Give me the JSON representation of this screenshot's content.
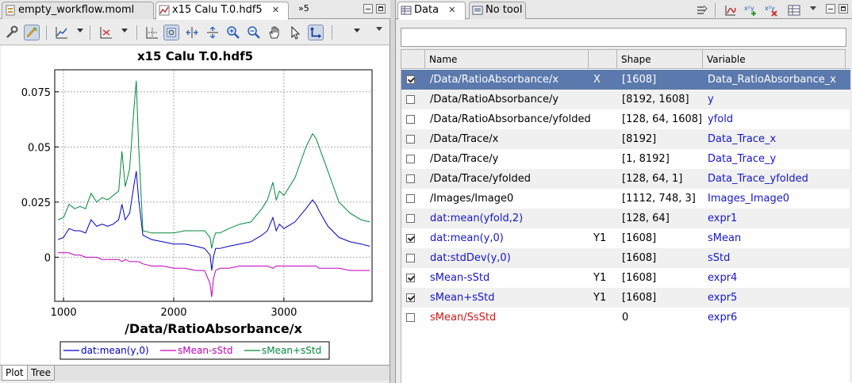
{
  "left_tabs": {
    "tab1": "empty_workflow.moml",
    "tab2": "x15 Calu T.0.hdf5",
    "overflow": "»5"
  },
  "plot": {
    "title": "x15 Calu T.0.hdf5",
    "xlabel": "/Data/RatioAbsorbance/x",
    "legend": [
      "dat:mean(y,0)",
      "sMean-sStd",
      "sMean+sStd"
    ]
  },
  "chart_data": {
    "type": "line",
    "title": "x15 Calu T.0.hdf5",
    "xlabel": "/Data/RatioAbsorbance/x",
    "ylabel": "",
    "xlim": [
      920,
      3800
    ],
    "ylim": [
      -0.02,
      0.085
    ],
    "x_ticks": [
      "1000",
      "2000",
      "3000"
    ],
    "y_ticks": [
      "0.075",
      "0.05",
      "0.025",
      "0"
    ],
    "grid": true,
    "legend_position": "bottom-center",
    "x": [
      950,
      1000,
      1050,
      1100,
      1150,
      1200,
      1250,
      1300,
      1350,
      1400,
      1450,
      1500,
      1530,
      1560,
      1600,
      1640,
      1660,
      1680,
      1720,
      1800,
      1900,
      2000,
      2100,
      2200,
      2280,
      2330,
      2345,
      2360,
      2380,
      2420,
      2500,
      2600,
      2700,
      2800,
      2850,
      2900,
      2930,
      2960,
      3000,
      3100,
      3200,
      3260,
      3290,
      3320,
      3400,
      3500,
      3600,
      3700,
      3780
    ],
    "series": [
      {
        "name": "dat:mean(y,0)",
        "color": "#0000c0",
        "values": [
          0.008,
          0.009,
          0.013,
          0.012,
          0.012,
          0.011,
          0.017,
          0.014,
          0.015,
          0.014,
          0.015,
          0.017,
          0.024,
          0.017,
          0.02,
          0.033,
          0.039,
          0.027,
          0.01,
          0.008,
          0.007,
          0.006,
          0.006,
          0.005,
          0.004,
          0.001,
          -0.006,
          0.0,
          0.004,
          0.004,
          0.005,
          0.006,
          0.007,
          0.01,
          0.012,
          0.018,
          0.012,
          0.015,
          0.013,
          0.016,
          0.022,
          0.026,
          0.024,
          0.021,
          0.014,
          0.009,
          0.007,
          0.006,
          0.005
        ]
      },
      {
        "name": "sMean-sStd",
        "color": "#c000c0",
        "values": [
          0.002,
          0.002,
          0.002,
          0.001,
          0.001,
          0.0,
          0.0,
          0.0,
          -0.001,
          -0.001,
          -0.001,
          -0.001,
          -0.002,
          -0.001,
          -0.002,
          -0.002,
          -0.002,
          -0.002,
          -0.003,
          -0.004,
          -0.004,
          -0.005,
          -0.005,
          -0.006,
          -0.006,
          -0.012,
          -0.018,
          -0.01,
          -0.006,
          -0.005,
          -0.005,
          -0.004,
          -0.004,
          -0.004,
          -0.004,
          -0.005,
          -0.004,
          -0.004,
          -0.004,
          -0.004,
          -0.004,
          -0.004,
          -0.004,
          -0.005,
          -0.005,
          -0.005,
          -0.006,
          -0.006,
          -0.006
        ]
      },
      {
        "name": "sMean+sStd",
        "color": "#008a3c",
        "values": [
          0.017,
          0.018,
          0.024,
          0.022,
          0.023,
          0.022,
          0.029,
          0.025,
          0.027,
          0.026,
          0.028,
          0.03,
          0.048,
          0.032,
          0.04,
          0.068,
          0.08,
          0.052,
          0.012,
          0.011,
          0.011,
          0.011,
          0.012,
          0.012,
          0.012,
          0.009,
          0.004,
          0.008,
          0.011,
          0.011,
          0.013,
          0.015,
          0.016,
          0.022,
          0.026,
          0.034,
          0.026,
          0.03,
          0.028,
          0.036,
          0.05,
          0.056,
          0.054,
          0.05,
          0.039,
          0.025,
          0.02,
          0.017,
          0.016
        ]
      }
    ]
  },
  "bottom_tabs": [
    "Plot",
    "Tree"
  ],
  "right_tabs": {
    "tab1": "Data",
    "tab2": "No tool"
  },
  "table": {
    "filter_value": "",
    "columns": [
      "",
      "Name",
      "",
      "Shape",
      "Variable"
    ],
    "rows": [
      {
        "checked": true,
        "name": "/Data/RatioAbsorbance/x",
        "axis": "X",
        "shape": "[1608]",
        "variable": "Data_RatioAbsorbance_x",
        "name_color": "black",
        "selected": true
      },
      {
        "checked": false,
        "name": "/Data/RatioAbsorbance/y",
        "axis": "",
        "shape": "[8192, 1608]",
        "variable": "y",
        "name_color": "black"
      },
      {
        "checked": false,
        "name": "/Data/RatioAbsorbance/yfolded",
        "axis": "",
        "shape": "[128, 64, 1608]",
        "variable": "yfold",
        "name_color": "black"
      },
      {
        "checked": false,
        "name": "/Data/Trace/x",
        "axis": "",
        "shape": "[8192]",
        "variable": "Data_Trace_x",
        "name_color": "black"
      },
      {
        "checked": false,
        "name": "/Data/Trace/y",
        "axis": "",
        "shape": "[1, 8192]",
        "variable": "Data_Trace_y",
        "name_color": "black"
      },
      {
        "checked": false,
        "name": "/Data/Trace/yfolded",
        "axis": "",
        "shape": "[128, 64, 1]",
        "variable": "Data_Trace_yfolded",
        "name_color": "black"
      },
      {
        "checked": false,
        "name": "/Images/Image0",
        "axis": "",
        "shape": "[1112, 748, 3]",
        "variable": "Images_Image0",
        "name_color": "black"
      },
      {
        "checked": false,
        "name": "dat:mean(yfold,2)",
        "axis": "",
        "shape": "[128, 64]",
        "variable": "expr1",
        "name_color": "blue"
      },
      {
        "checked": true,
        "name": "dat:mean(y,0)",
        "axis": "Y1",
        "shape": "[1608]",
        "variable": "sMean",
        "name_color": "blue"
      },
      {
        "checked": false,
        "name": "dat:stdDev(y,0)",
        "axis": "",
        "shape": "[1608]",
        "variable": "sStd",
        "name_color": "blue"
      },
      {
        "checked": true,
        "name": "sMean-sStd",
        "axis": "Y1",
        "shape": "[1608]",
        "variable": "expr4",
        "name_color": "blue"
      },
      {
        "checked": true,
        "name": "sMean+sStd",
        "axis": "Y1",
        "shape": "[1608]",
        "variable": "expr5",
        "name_color": "blue"
      },
      {
        "checked": false,
        "name": "sMean/SsStd",
        "axis": "",
        "shape": "0",
        "variable": "expr6",
        "name_color": "red"
      }
    ]
  }
}
